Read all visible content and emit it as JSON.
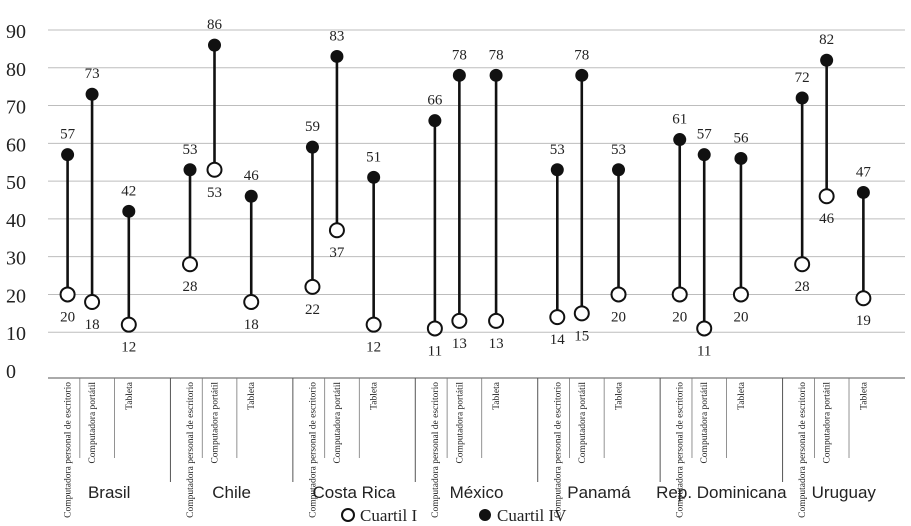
{
  "chart_data": {
    "type": "dumbbell",
    "ylim": [
      0,
      90
    ],
    "yticks": [
      0,
      10,
      20,
      30,
      40,
      50,
      60,
      70,
      80,
      90
    ],
    "grid": true,
    "series": [
      {
        "name": "Cuartil I",
        "marker": "open-circle"
      },
      {
        "name": "Cuartil IV",
        "marker": "filled-circle"
      }
    ],
    "device_labels": [
      "Computadora personal de escritorio",
      "Computadora portátil",
      "Tableta"
    ],
    "groups": [
      {
        "country": "Brasil",
        "items": [
          {
            "device": "Computadora personal de escritorio",
            "q1": 20,
            "q4": 57
          },
          {
            "device": "Computadora portátil",
            "q1": 18,
            "q4": 73
          },
          {
            "device": "Tableta",
            "q1": 12,
            "q4": 42
          }
        ]
      },
      {
        "country": "Chile",
        "items": [
          {
            "device": "Computadora personal de escritorio",
            "q1": 28,
            "q4": 53
          },
          {
            "device": "Computadora portátil",
            "q1": 53,
            "q4": 86
          },
          {
            "device": "Tableta",
            "q1": 18,
            "q4": 46
          }
        ]
      },
      {
        "country": "Costa Rica",
        "items": [
          {
            "device": "Computadora personal de escritorio",
            "q1": 22,
            "q4": 59
          },
          {
            "device": "Computadora portátil",
            "q1": 37,
            "q4": 83
          },
          {
            "device": "Tableta",
            "q1": 12,
            "q4": 51
          }
        ]
      },
      {
        "country": "México",
        "items": [
          {
            "device": "Computadora personal de escritorio",
            "q1": 11,
            "q4": 66
          },
          {
            "device": "Computadora portátil",
            "q1": 13,
            "q4": 78
          },
          {
            "device": "Tableta",
            "q1": 13,
            "q4": 78
          }
        ]
      },
      {
        "country": "Panamá",
        "items": [
          {
            "device": "Computadora personal de escritorio",
            "q1": 14,
            "q4": 53
          },
          {
            "device": "Computadora portátil",
            "q1": 15,
            "q4": 78
          },
          {
            "device": "Tableta",
            "q1": 20,
            "q4": 53
          }
        ]
      },
      {
        "country": "Rep. Dominicana",
        "items": [
          {
            "device": "Computadora personal de escritorio",
            "q1": 20,
            "q4": 61
          },
          {
            "device": "Computadora portátil",
            "q1": 11,
            "q4": 57
          },
          {
            "device": "Tableta",
            "q1": 20,
            "q4": 56
          }
        ]
      },
      {
        "country": "Uruguay",
        "items": [
          {
            "device": "Computadora personal de escritorio",
            "q1": 28,
            "q4": 72
          },
          {
            "device": "Computadora portátil",
            "q1": 46,
            "q4": 82
          },
          {
            "device": "Tableta",
            "q1": 19,
            "q4": 47
          }
        ]
      }
    ],
    "legend_position": "bottom-center"
  },
  "colors": {
    "line": "#111111",
    "grid": "#bdbdbd",
    "marker_fill_open": "#ffffff",
    "text": "#222222"
  }
}
